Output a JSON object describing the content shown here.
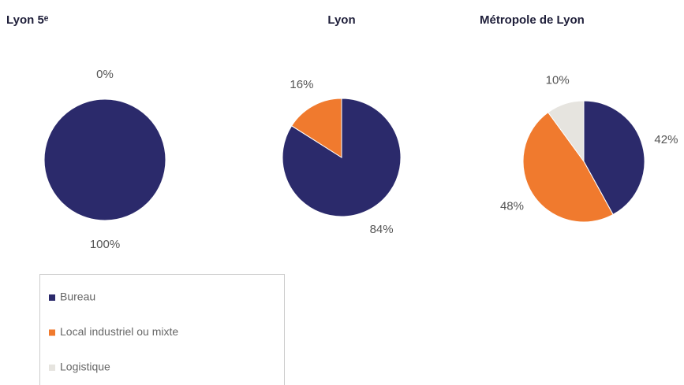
{
  "chart_data": [
    {
      "type": "pie",
      "title": "Lyon 5ᵉ",
      "values": [
        100,
        0
      ],
      "value_labels": [
        "100%",
        "0%"
      ]
    },
    {
      "type": "pie",
      "title": "Lyon",
      "values": [
        84,
        16
      ],
      "value_labels": [
        "84%",
        "16%"
      ]
    },
    {
      "type": "pie",
      "title": "Métropole de Lyon",
      "values": [
        42,
        48,
        10
      ],
      "value_labels": [
        "42%",
        "48%",
        "10%"
      ]
    }
  ],
  "legend": [
    {
      "name": "Bureau",
      "color": "#2b2a6b"
    },
    {
      "name": "Local industriel ou mixte",
      "color": "#f07a2e"
    },
    {
      "name": "Logistique",
      "color": "#e6e4df"
    }
  ]
}
